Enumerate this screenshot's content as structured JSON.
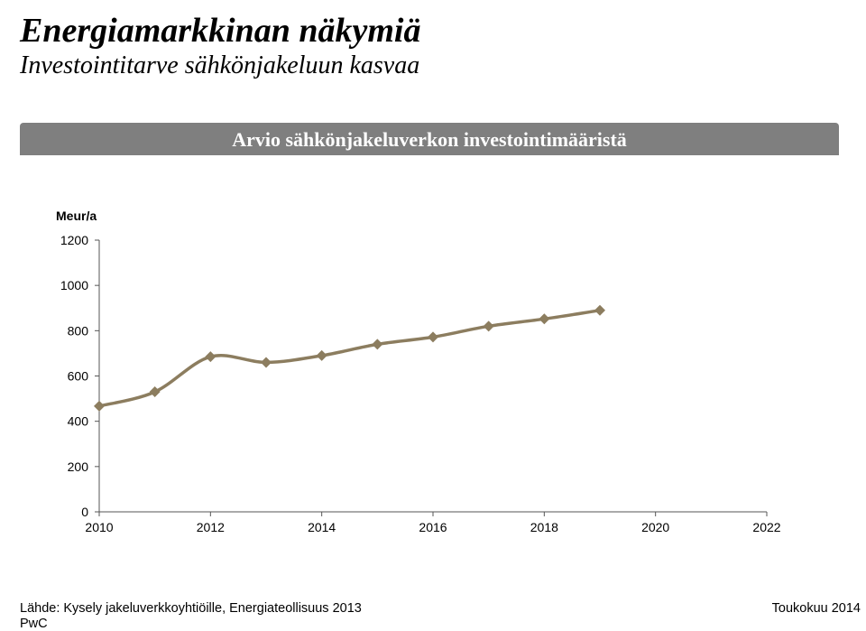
{
  "header": {
    "title": "Energiamarkkinan näkymiä",
    "subtitle": "Investointitarve sähkönjakeluun kasvaa"
  },
  "banner": {
    "text": "Arvio sähkönjakeluverkon investointimääristä",
    "color": "#7f7f7f"
  },
  "chart_data": {
    "type": "line",
    "unit_label": "Meur/a",
    "x": [
      2010,
      2011,
      2012,
      2013,
      2014,
      2015,
      2016,
      2017,
      2018,
      2019
    ],
    "series": [
      {
        "values": [
          467,
          530,
          685,
          660,
          690,
          740,
          772,
          820,
          852,
          890
        ]
      }
    ],
    "xlim": [
      2010,
      2022
    ],
    "ylim": [
      0,
      1200
    ],
    "x_ticks": [
      "2010",
      "2012",
      "2014",
      "2016",
      "2018",
      "2020",
      "2022"
    ],
    "y_ticks": [
      "0",
      "200",
      "400",
      "600",
      "800",
      "1000",
      "1200"
    ],
    "smooth": true,
    "marker": "diamond",
    "line_color": "#8c7d5f",
    "grid": false,
    "legend": "none"
  },
  "footer": {
    "source": "Lähde: Kysely jakeluverkkoyhtiöille, Energiateollisuus 2013",
    "brand": "PwC",
    "date": "Toukokuu 2014"
  }
}
